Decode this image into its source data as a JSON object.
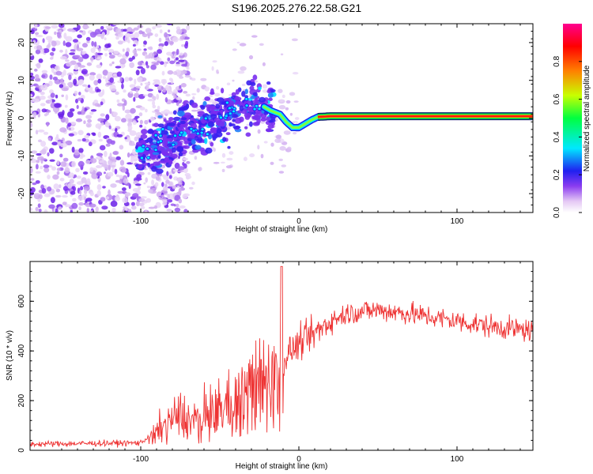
{
  "title": "S196.2025.276.22.58.G21",
  "chart_data": [
    {
      "type": "heatmap",
      "name": "spectrogram",
      "xlabel": "Height of straight line (km)",
      "ylabel": "Frequency (Hz)",
      "xlim": [
        -170,
        148
      ],
      "ylim": [
        -25,
        25
      ],
      "xticks": [
        -100,
        0,
        100
      ],
      "yticks": [
        -20,
        -10,
        0,
        10,
        20
      ],
      "colorbar": {
        "label": "Normalized spectral amplitude",
        "range": [
          0,
          1
        ],
        "ticks": [
          0.0,
          0.2,
          0.4,
          0.6,
          0.8
        ],
        "colors": [
          "#ffffff",
          "#e4c8f4",
          "#8a3cf0",
          "#2020f0",
          "#00e8ff",
          "#00ff40",
          "#c8ff00",
          "#ff8000",
          "#ff0000",
          "#ff0090"
        ]
      },
      "ridge": {
        "x": [
          -100,
          -85,
          -70,
          -55,
          -40,
          -30,
          -22,
          -18,
          -12,
          -8,
          -4,
          0,
          4,
          8,
          12,
          20,
          40,
          80,
          120,
          148
        ],
        "y": [
          -10,
          -6,
          -3,
          -1,
          2,
          4,
          3,
          2,
          1,
          -1,
          -2.5,
          -2.5,
          -1.5,
          -0.5,
          0.3,
          0.5,
          0.5,
          0.5,
          0.5,
          0.5
        ]
      }
    },
    {
      "type": "line",
      "name": "snr",
      "xlabel": "Height of straight line (km)",
      "ylabel": "SNR (10 * v/v)",
      "xlim": [
        -170,
        148
      ],
      "ylim": [
        0,
        760
      ],
      "xticks": [
        -100,
        0,
        100
      ],
      "yticks": [
        0,
        200,
        400,
        600
      ],
      "color": "#ee3333",
      "trend": {
        "x": [
          -170,
          -100,
          -90,
          -80,
          -75,
          -70,
          -60,
          -40,
          -25,
          -12,
          -10,
          -5,
          0,
          10,
          20,
          30,
          40,
          50,
          70,
          100,
          120,
          148
        ],
        "y": [
          25,
          30,
          80,
          130,
          150,
          120,
          140,
          200,
          280,
          330,
          360,
          400,
          430,
          470,
          520,
          550,
          560,
          565,
          550,
          520,
          500,
          480
        ]
      }
    }
  ]
}
